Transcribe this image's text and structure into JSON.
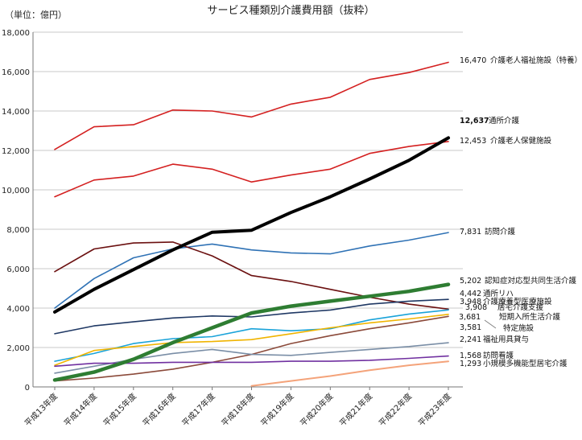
{
  "chart_data": {
    "type": "line",
    "title": "サービス種類別介護費用額（抜粋）",
    "unit_label": "（単位：億円）",
    "ylim": [
      0,
      18000
    ],
    "yticks": [
      0,
      2000,
      4000,
      6000,
      8000,
      10000,
      12000,
      14000,
      16000,
      18000
    ],
    "ytick_labels": [
      "0",
      "2,000",
      "4,000",
      "6,000",
      "8,000",
      "10,000",
      "12,000",
      "14,000",
      "16,000",
      "18,000"
    ],
    "categories": [
      "平成13年度",
      "平成14年度",
      "平成15年度",
      "平成16年度",
      "平成17年度",
      "平成18年度",
      "平成19年度",
      "平成20年度",
      "平成21年度",
      "平成22年度",
      "平成23年度"
    ],
    "grid": true,
    "series": [
      {
        "name": "介護老人福祉施設（特養）",
        "end_label": "16,470",
        "color": "#d42020",
        "width": 1.6,
        "values": [
          12050,
          13200,
          13300,
          14050,
          14000,
          13700,
          14350,
          14700,
          15600,
          15950,
          16470
        ]
      },
      {
        "name": "介護老人保健施設",
        "end_label": "12,453",
        "color": "#d42020",
        "width": 1.6,
        "values": [
          9650,
          10500,
          10700,
          11300,
          11050,
          10400,
          10750,
          11050,
          11850,
          12200,
          12453
        ]
      },
      {
        "name": "通所介護",
        "end_label": "12,637",
        "color": "#000000",
        "width": 4,
        "bold_label": true,
        "values": [
          3800,
          4950,
          5950,
          6950,
          7850,
          7950,
          8850,
          9650,
          10550,
          11500,
          12637
        ]
      },
      {
        "name": "訪問介護",
        "end_label": "7,831",
        "color": "#2f72b5",
        "width": 1.6,
        "values": [
          4000,
          5500,
          6550,
          7000,
          7250,
          6950,
          6800,
          6750,
          7150,
          7450,
          7831
        ]
      },
      {
        "name": "認知症対応型共同生活介護",
        "end_label": "5,202",
        "color": "#2e7d32",
        "width": 4.5,
        "values": [
          350,
          750,
          1400,
          2250,
          3000,
          3750,
          4100,
          4350,
          4600,
          4850,
          5202
        ]
      },
      {
        "name": "介護療養型医療施設",
        "end_label": "3,948",
        "color": "#6b1010",
        "width": 1.6,
        "values": [
          5850,
          7000,
          7300,
          7350,
          6650,
          5650,
          5350,
          4950,
          4550,
          4200,
          3948
        ]
      },
      {
        "name": "通所リハ",
        "end_label": "4,442",
        "color": "#1f3864",
        "width": 1.6,
        "values": [
          2700,
          3100,
          3300,
          3500,
          3600,
          3550,
          3750,
          3900,
          4200,
          4350,
          4442
        ]
      },
      {
        "name": "居宅介護支援",
        "end_label": "3,908",
        "color": "#1aa3d9",
        "width": 1.6,
        "values": [
          1300,
          1700,
          2200,
          2450,
          2550,
          2950,
          2850,
          2950,
          3400,
          3700,
          3908
        ]
      },
      {
        "name": "短期入所生活介護",
        "end_label": "3,681",
        "color": "#f0b400",
        "width": 1.6,
        "values": [
          1100,
          1850,
          2050,
          2250,
          2300,
          2400,
          2700,
          3000,
          3250,
          3450,
          3681
        ]
      },
      {
        "name": "特定施設",
        "end_label": "3,581",
        "color": "#8b4a3a",
        "width": 1.6,
        "values": [
          300,
          450,
          650,
          900,
          1250,
          1650,
          2200,
          2600,
          2950,
          3250,
          3581
        ]
      },
      {
        "name": "福祉用具貸与",
        "end_label": "2,241",
        "color": "#7a8ea6",
        "width": 1.6,
        "values": [
          700,
          1050,
          1400,
          1700,
          1900,
          1650,
          1600,
          1750,
          1900,
          2050,
          2241
        ]
      },
      {
        "name": "訪問看護",
        "end_label": "1,568",
        "color": "#7030a0",
        "width": 1.6,
        "values": [
          1050,
          1200,
          1200,
          1250,
          1250,
          1250,
          1300,
          1300,
          1350,
          1450,
          1568
        ]
      },
      {
        "name": "小規模多機能型居宅介護",
        "end_label": "1,293",
        "color": "#f4a37a",
        "width": 2,
        "values": [
          null,
          null,
          null,
          null,
          null,
          50,
          300,
          550,
          850,
          1100,
          1293
        ]
      }
    ]
  }
}
